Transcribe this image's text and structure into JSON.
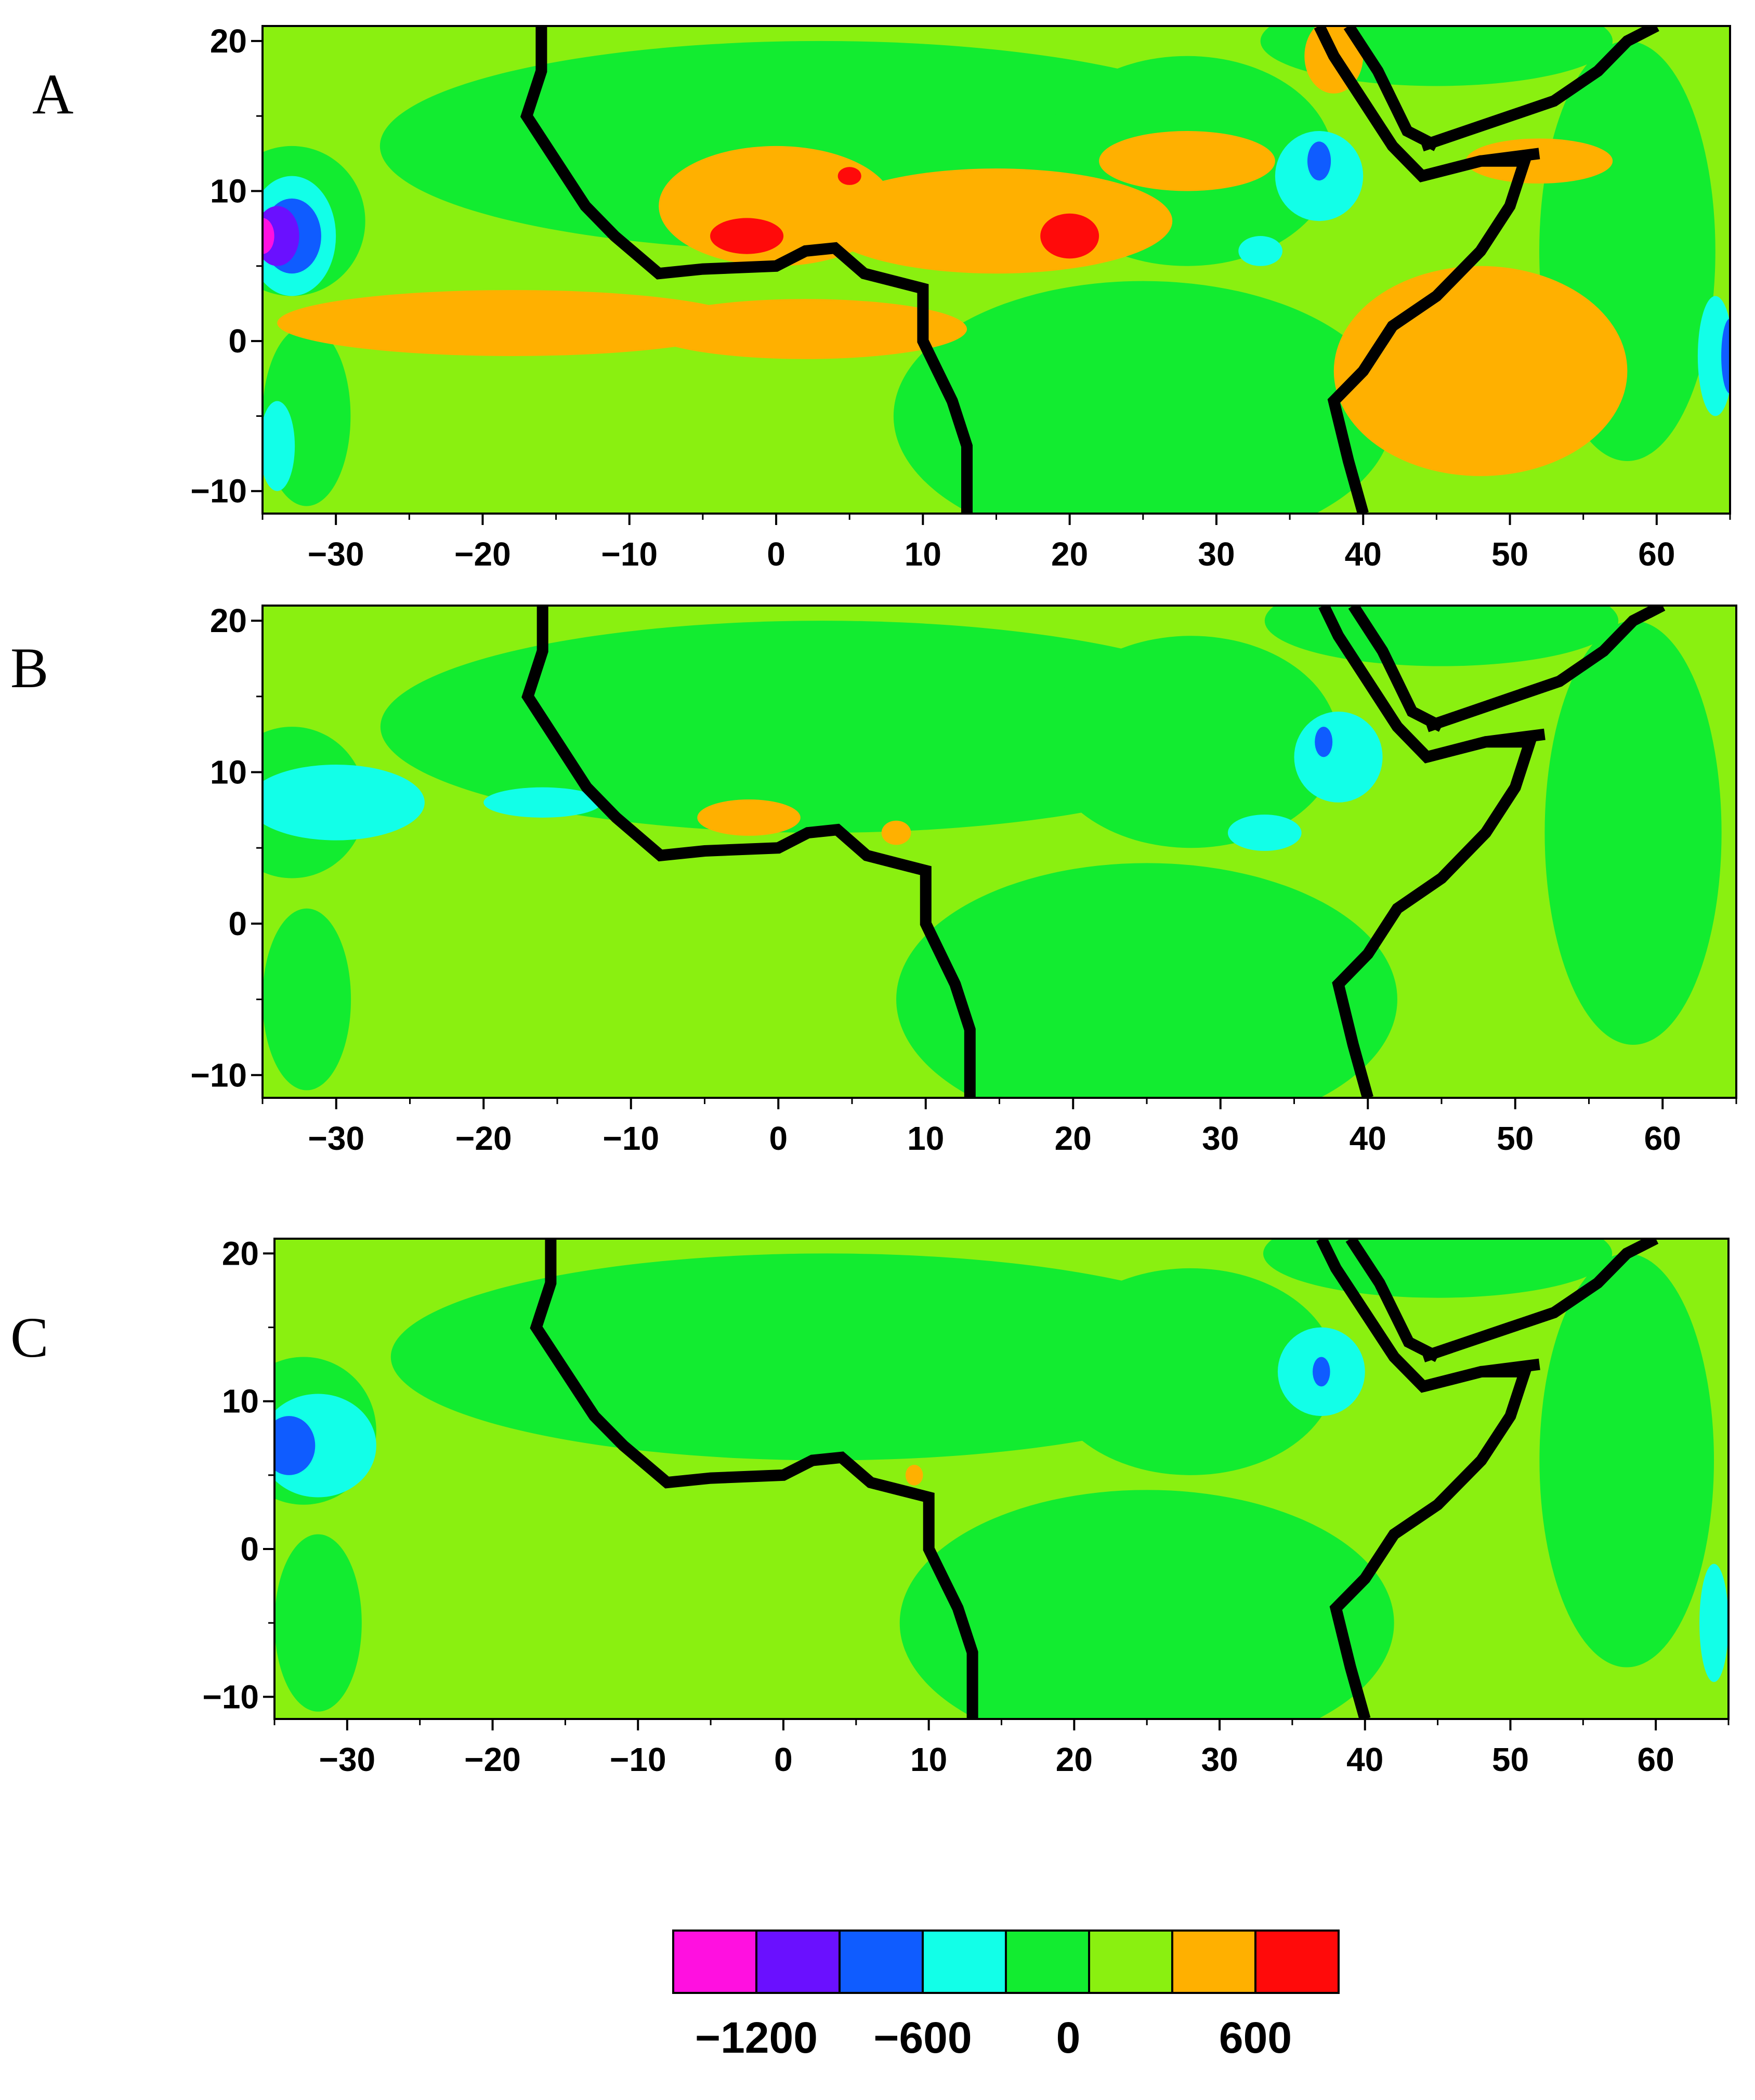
{
  "panels": [
    {
      "letter": "A"
    },
    {
      "letter": "B"
    },
    {
      "letter": "C"
    }
  ],
  "x_axis": {
    "ticks": [
      -30,
      -20,
      -10,
      0,
      10,
      20,
      30,
      40,
      50,
      60
    ],
    "range": [
      -35,
      65
    ]
  },
  "y_axis": {
    "ticks": [
      20,
      10,
      0,
      -10
    ],
    "range": [
      -11.5,
      21
    ]
  },
  "colorbar": {
    "colors": [
      "#ff10e0",
      "#6a10ff",
      "#0f5cff",
      "#12ffe8",
      "#12ec30",
      "#8af010",
      "#ffb000",
      "#ff0a0a"
    ],
    "labels": [
      "−1200",
      "−600",
      "0",
      "600"
    ]
  },
  "palette": {
    "background": "#8af010",
    "land_green": "#12ec30",
    "orange": "#ffb000",
    "red": "#ff0a0a",
    "cyan": "#12ffe8",
    "blue": "#0f5cff",
    "purple": "#6a10ff",
    "magenta": "#ff10e0",
    "coast": "#000000"
  }
}
